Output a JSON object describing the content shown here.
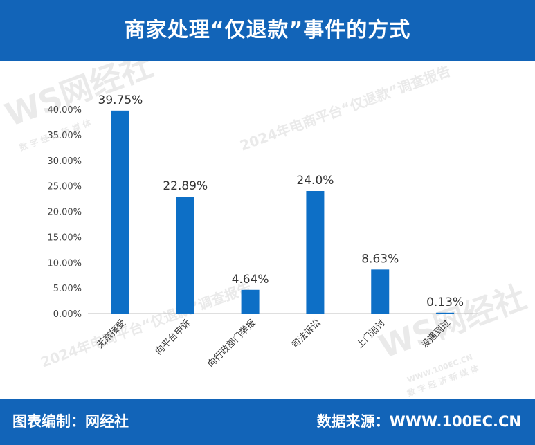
{
  "header": {
    "title": "商家处理“仅退款”事件的方式"
  },
  "footer": {
    "compiled_by": "图表编制：网经社",
    "source": "数据来源：WWW.100EC.CN"
  },
  "watermark": {
    "brand": "WS网经社",
    "brand_sub": "数 字 经 济 新 媒 体",
    "report": "2024年电商平台“仅退款”调查报告",
    "url": "WWW.100EC.CN"
  },
  "colors": {
    "bar": "#0d6fc6",
    "header_bg": "#1264b8"
  },
  "chart_data": {
    "type": "bar",
    "categories": [
      "无奈接受",
      "向平台申诉",
      "向行政部门举报",
      "司法诉讼",
      "上门追讨",
      "没遇到过"
    ],
    "values": [
      39.75,
      22.89,
      4.64,
      24.0,
      8.63,
      0.13
    ],
    "data_labels": [
      "39.75%",
      "22.89%",
      "4.64%",
      "24.0%",
      "8.63%",
      "0.13%"
    ],
    "ylim": [
      0,
      40
    ],
    "yticks": [
      "0.00%",
      "5.00%",
      "10.00%",
      "15.00%",
      "20.00%",
      "25.00%",
      "30.00%",
      "35.00%",
      "40.00%"
    ],
    "ytick_values": [
      0,
      5,
      10,
      15,
      20,
      25,
      30,
      35,
      40
    ],
    "title": "",
    "xlabel": "",
    "ylabel": "",
    "grid": false
  }
}
